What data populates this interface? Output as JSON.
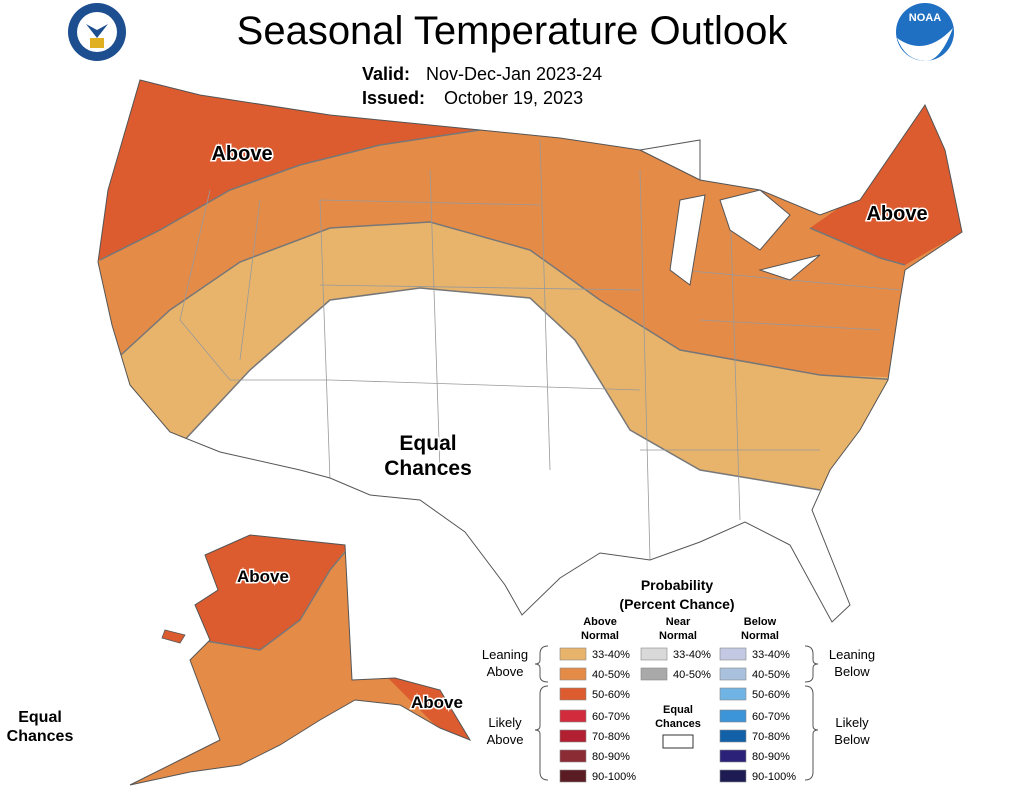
{
  "header": {
    "title": "Seasonal Temperature Outlook",
    "valid_label": "Valid:",
    "valid": "Nov-Dec-Jan 2023-24",
    "issued_label": "Issued:",
    "issued": "October 19, 2023",
    "logo": "NOAA"
  },
  "map_labels": [
    [
      "Above"
    ],
    [
      "Above"
    ],
    [
      "Equal",
      "Chances"
    ],
    [
      "Above"
    ],
    [
      "Above"
    ],
    [
      "Equal",
      "Chances"
    ]
  ],
  "legend": {
    "title": [
      "Probability",
      "(Percent Chance)"
    ],
    "columns": [
      {
        "heading": [
          "Above",
          "Normal"
        ],
        "items": [
          {
            "label": "33-40%",
            "color": "#e8b46c"
          },
          {
            "label": "40-50%",
            "color": "#e58b48"
          },
          {
            "label": "50-60%",
            "color": "#dc5b2f"
          },
          {
            "label": "60-70%",
            "color": "#d22b3b"
          },
          {
            "label": "70-80%",
            "color": "#b21f30"
          },
          {
            "label": "80-90%",
            "color": "#8b2b34"
          },
          {
            "label": "90-100%",
            "color": "#5b1b22"
          }
        ]
      },
      {
        "heading": [
          "Near",
          "Normal"
        ],
        "items": [
          {
            "label": "33-40%",
            "color": "#d9d9d9"
          },
          {
            "label": "40-50%",
            "color": "#a9a9a9"
          }
        ]
      },
      {
        "heading": [
          "Below",
          "Normal"
        ],
        "items": [
          {
            "label": "33-40%",
            "color": "#c4c9e3"
          },
          {
            "label": "40-50%",
            "color": "#a9c1dd"
          },
          {
            "label": "50-60%",
            "color": "#70b3e5"
          },
          {
            "label": "60-70%",
            "color": "#3b95d8"
          },
          {
            "label": "70-80%",
            "color": "#1261a8"
          },
          {
            "label": "80-90%",
            "color": "#2b2179"
          },
          {
            "label": "90-100%",
            "color": "#1d1b51"
          }
        ]
      }
    ],
    "groups": [
      [
        "Leaning",
        "Above"
      ],
      [
        "Likely",
        "Above"
      ],
      [
        "Leaning",
        "Below"
      ],
      [
        "Likely",
        "Below"
      ]
    ],
    "equal_chances": [
      "Equal",
      "Chances"
    ]
  }
}
